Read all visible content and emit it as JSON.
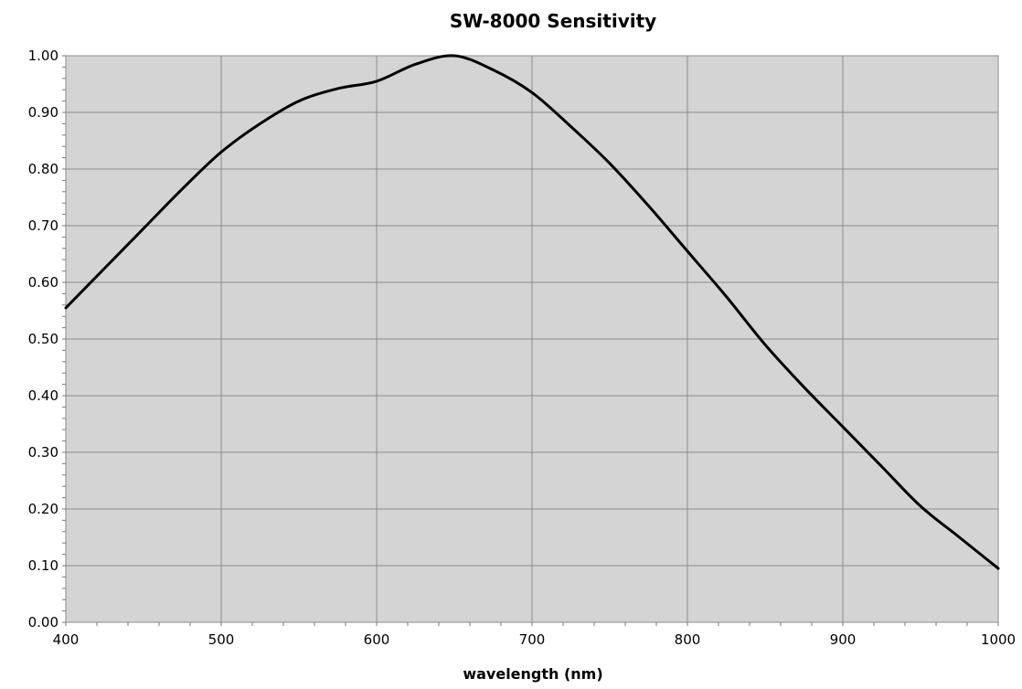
{
  "chart_data": {
    "type": "line",
    "title": "SW-8000 Sensitivity",
    "xlabel": "wavelength (nm)",
    "ylabel": "",
    "xlim": [
      400,
      1000
    ],
    "ylim": [
      0,
      1.0
    ],
    "x_ticks": [
      "400",
      "500",
      "600",
      "700",
      "800",
      "900",
      "1000"
    ],
    "y_ticks": [
      "0.00",
      "0.10",
      "0.20",
      "0.30",
      "0.40",
      "0.50",
      "0.60",
      "0.70",
      "0.80",
      "0.90",
      "1.00"
    ],
    "grid": true,
    "plot_background": "#d4d4d4",
    "grid_color": "#8c8c8c",
    "line_color": "#000000",
    "series": [
      {
        "x": [
          400,
          425,
          450,
          475,
          500,
          525,
          550,
          575,
          600,
          625,
          650,
          675,
          700,
          725,
          750,
          775,
          800,
          825,
          850,
          875,
          900,
          925,
          950,
          975,
          1000
        ],
        "y": [
          0.555,
          0.625,
          0.695,
          0.765,
          0.83,
          0.88,
          0.92,
          0.942,
          0.955,
          0.985,
          1.0,
          0.975,
          0.935,
          0.875,
          0.81,
          0.735,
          0.655,
          0.575,
          0.49,
          0.415,
          0.345,
          0.275,
          0.205,
          0.15,
          0.095
        ]
      }
    ]
  }
}
